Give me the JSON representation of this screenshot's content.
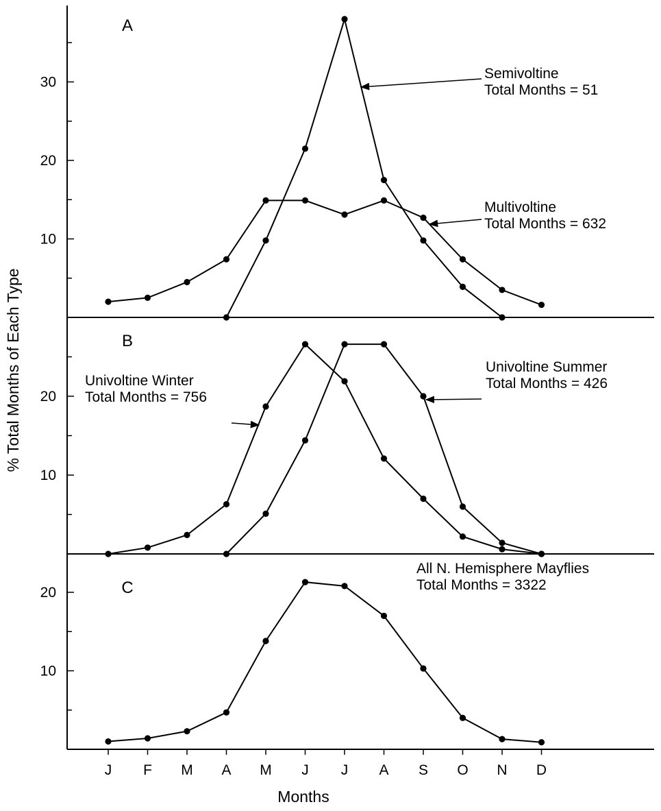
{
  "chart_data": {
    "type": "line",
    "ylabel": "% Total Months of Each Type",
    "xlabel": "Months",
    "categories": [
      "J",
      "F",
      "M",
      "A",
      "M",
      "J",
      "J",
      "A",
      "S",
      "O",
      "N",
      "D"
    ],
    "panels": [
      {
        "id": "A",
        "label": "A",
        "ylim": [
          0,
          38
        ],
        "y_ticks": [
          10,
          20,
          30
        ],
        "series": [
          {
            "name": "Semivoltine",
            "annotation": [
              "Semivoltine",
              "Total Months = 51"
            ],
            "x_index": [
              3,
              4,
              5,
              6,
              7,
              8,
              9,
              10
            ],
            "values": [
              0,
              9.8,
              21.5,
              38.0,
              17.5,
              9.8,
              3.9,
              0
            ]
          },
          {
            "name": "Multivoltine",
            "annotation": [
              "Multivoltine",
              "Total Months = 632"
            ],
            "x_index": [
              0,
              1,
              2,
              3,
              4,
              5,
              6,
              7,
              8,
              9,
              10,
              11
            ],
            "values": [
              2.0,
              2.5,
              4.5,
              7.4,
              14.9,
              14.9,
              13.1,
              14.9,
              12.7,
              7.4,
              3.5,
              1.6
            ]
          }
        ]
      },
      {
        "id": "B",
        "label": "B",
        "ylim": [
          0,
          26.5
        ],
        "y_ticks": [
          10,
          20
        ],
        "series": [
          {
            "name": "Univoltine Winter",
            "annotation": [
              "Univoltine Winter",
              "Total Months = 756"
            ],
            "x_index": [
              0,
              1,
              2,
              3,
              4,
              5,
              6,
              7,
              8,
              9,
              10,
              11
            ],
            "values": [
              0,
              0.8,
              2.4,
              6.3,
              18.7,
              26.6,
              21.9,
              12.1,
              7.0,
              2.2,
              0.6,
              0
            ]
          },
          {
            "name": "Univoltine Summer",
            "annotation": [
              "Univoltine Summer",
              "Total Months = 426"
            ],
            "x_index": [
              3,
              4,
              5,
              6,
              7,
              8,
              9,
              10,
              11
            ],
            "values": [
              0,
              5.1,
              14.4,
              26.6,
              26.6,
              20.0,
              6.0,
              1.4,
              0
            ]
          }
        ]
      },
      {
        "id": "C",
        "label": "C",
        "ylim": [
          0,
          24
        ],
        "y_ticks": [
          10,
          20
        ],
        "series": [
          {
            "name": "All N. Hemisphere Mayflies",
            "annotation": [
              "All N. Hemisphere Mayflies",
              "Total Months = 3322"
            ],
            "x_index": [
              0,
              1,
              2,
              3,
              4,
              5,
              6,
              7,
              8,
              9,
              10,
              11
            ],
            "values": [
              1.0,
              1.4,
              2.3,
              4.7,
              13.8,
              21.3,
              20.8,
              17.0,
              10.3,
              4.0,
              1.3,
              0.9
            ]
          }
        ]
      }
    ]
  }
}
